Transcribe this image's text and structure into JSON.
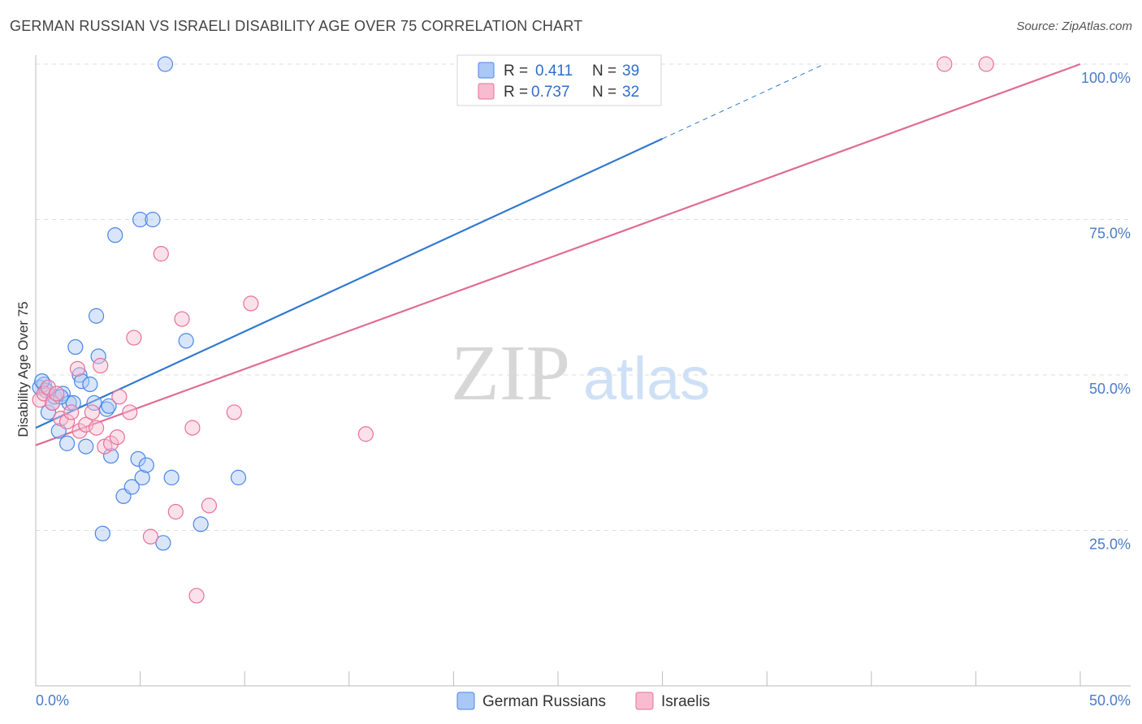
{
  "title": "GERMAN RUSSIAN VS ISRAELI DISABILITY AGE OVER 75 CORRELATION CHART",
  "source": "Source: ZipAtlas.com",
  "watermark": {
    "zip": "ZIP",
    "atlas": "atlas"
  },
  "colors": {
    "blue": "#4a86e8",
    "blue_fill": "#aac8f5",
    "blue_line": "#2f78d0",
    "pink": "#e8709a",
    "pink_fill": "#f7bcd0",
    "pink_line": "#e06b94",
    "tick_text": "#4a7cc7",
    "grid": "#dddddd"
  },
  "legend": {
    "blue": {
      "r_label": "R =",
      "r_value": "0.411",
      "n_label": "N =",
      "n_value": "39"
    },
    "pink": {
      "r_label": "R =",
      "r_value": "0.737",
      "n_label": "N =",
      "n_value": "32"
    }
  },
  "chart_data": {
    "type": "scatter",
    "title": "GERMAN RUSSIAN VS ISRAELI DISABILITY AGE OVER 75 CORRELATION CHART",
    "xlabel": "",
    "ylabel": "Disability Age Over 75",
    "xlim": [
      0,
      50
    ],
    "ylim": [
      0,
      102
    ],
    "x_tick_labels": [
      "0.0%",
      "50.0%"
    ],
    "y_ticks": [
      25,
      50,
      75,
      100
    ],
    "y_tick_labels": [
      "25.0%",
      "50.0%",
      "75.0%",
      "100.0%"
    ],
    "grid": true,
    "series": [
      {
        "name": "German Russians",
        "color": "#4a86e8",
        "trend": {
          "x0": 0,
          "y0": 41.5,
          "x1": 30,
          "y1": 88,
          "dash_to_x": 37.6
        },
        "points": [
          [
            0.2,
            48
          ],
          [
            0.4,
            48.5
          ],
          [
            0.5,
            47.5
          ],
          [
            0.6,
            44
          ],
          [
            0.8,
            45.5
          ],
          [
            0.9,
            46.5
          ],
          [
            1.1,
            41
          ],
          [
            1.3,
            47
          ],
          [
            1.5,
            39
          ],
          [
            1.6,
            45.5
          ],
          [
            1.8,
            45.5
          ],
          [
            1.9,
            54.5
          ],
          [
            2.1,
            50
          ],
          [
            2.2,
            49
          ],
          [
            2.4,
            38.5
          ],
          [
            2.6,
            48.5
          ],
          [
            2.9,
            59.5
          ],
          [
            3.0,
            53
          ],
          [
            3.2,
            24.5
          ],
          [
            3.4,
            44.5
          ],
          [
            3.5,
            45
          ],
          [
            3.6,
            37
          ],
          [
            3.8,
            72.5
          ],
          [
            4.2,
            30.5
          ],
          [
            4.6,
            32
          ],
          [
            4.9,
            36.5
          ],
          [
            5.0,
            75
          ],
          [
            5.1,
            33.5
          ],
          [
            5.3,
            35.5
          ],
          [
            5.6,
            75
          ],
          [
            6.1,
            23
          ],
          [
            6.2,
            100
          ],
          [
            6.5,
            33.5
          ],
          [
            7.2,
            55.5
          ],
          [
            7.9,
            26
          ],
          [
            9.7,
            33.5
          ],
          [
            0.3,
            49
          ],
          [
            2.8,
            45.5
          ],
          [
            1.2,
            46.5
          ]
        ]
      },
      {
        "name": "Israelis",
        "color": "#e8709a",
        "trend": {
          "x0": 0,
          "y0": 38.7,
          "x1": 50,
          "y1": 100
        },
        "points": [
          [
            0.2,
            46
          ],
          [
            0.4,
            47
          ],
          [
            0.6,
            48
          ],
          [
            0.8,
            45.5
          ],
          [
            1.0,
            47
          ],
          [
            1.2,
            43
          ],
          [
            1.5,
            42.5
          ],
          [
            1.7,
            44
          ],
          [
            2.0,
            51
          ],
          [
            2.1,
            41
          ],
          [
            2.4,
            42
          ],
          [
            2.7,
            44
          ],
          [
            2.9,
            41.5
          ],
          [
            3.1,
            51.5
          ],
          [
            3.3,
            38.5
          ],
          [
            3.6,
            39
          ],
          [
            3.9,
            40
          ],
          [
            4.0,
            46.5
          ],
          [
            4.5,
            44
          ],
          [
            4.7,
            56
          ],
          [
            5.5,
            24
          ],
          [
            6.0,
            69.5
          ],
          [
            6.7,
            28
          ],
          [
            7.0,
            59
          ],
          [
            7.5,
            41.5
          ],
          [
            7.7,
            14.5
          ],
          [
            8.3,
            29
          ],
          [
            9.5,
            44
          ],
          [
            10.3,
            61.5
          ],
          [
            15.8,
            40.5
          ],
          [
            43.5,
            100
          ],
          [
            45.5,
            100
          ]
        ]
      }
    ]
  }
}
